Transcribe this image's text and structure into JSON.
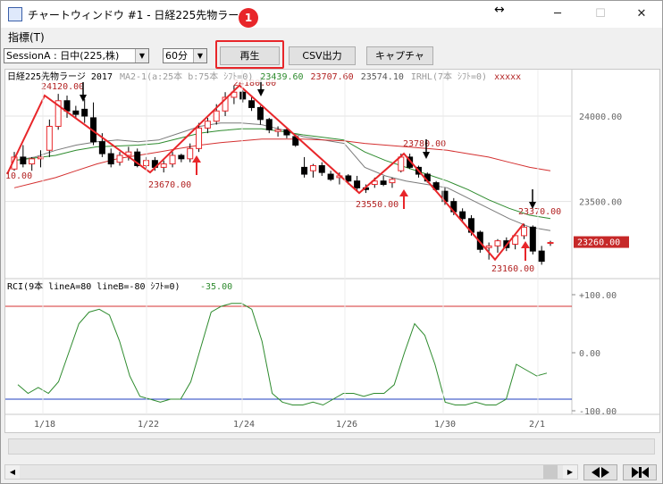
{
  "window": {
    "title": "チャートウィンドウ #1 - 日経225先物ラージ",
    "resize_symbol": "↔",
    "minimize_symbol": "─",
    "maximize_symbol": "☐",
    "close_symbol": "✕"
  },
  "menu": {
    "items": [
      {
        "label": "指標(T)"
      }
    ]
  },
  "toolbar": {
    "session_combo_value": "SessionA : 日中(225,株)",
    "interval_combo_value": "60分",
    "play_label": "再生",
    "csv_label": "CSV出力",
    "capture_label": "キャプチャ",
    "combo_arrow": "▼"
  },
  "annotation": {
    "step_number": "1"
  },
  "chart": {
    "header_title": "日経225先物ラージ 2017",
    "header_ma_text": "MA2-1(a:25本 b:75本 ｼﾌﾄ=0)",
    "header_ma_val1": "23439.60",
    "header_ma_val2": "23707.60",
    "header_ma_val3": "23574.10",
    "header_irhl_text": "IRHL(7本 ｼﾌﾄ=0)",
    "header_irhl_val": "xxxxx",
    "price_axis_labels": [
      "24000.00",
      "23500.00"
    ],
    "current_price_label": "23260.00",
    "zigzag_labels": [
      "24120.00",
      "10.00",
      "23670.00",
      "24180.00",
      "23550.00",
      "23780.00",
      "23370.00",
      "23160.00"
    ],
    "rci_header": "RCI(9本 lineA=80 lineB=-80 ｼﾌﾄ=0)",
    "rci_value": "-35.00",
    "rci_axis_labels": [
      "+100.00",
      "0.00",
      "-100.00"
    ],
    "date_labels": [
      "1/18",
      "1/22",
      "1/24",
      "1/26",
      "1/30",
      "2/1"
    ],
    "colors": {
      "up_candle": "#ffffff",
      "down_candle": "#000000",
      "zigzag": "#e8262a",
      "ma_fast": "#7a7a7a",
      "ma_mid": "#2e8b2e",
      "ma_slow": "#d43030",
      "rci_line": "#2e8b2e",
      "rci_line_a": "#d43030",
      "rci_line_b": "#1f3fbf"
    }
  },
  "chart_data": {
    "type": "candlestick",
    "title": "日経225先物ラージ 2017",
    "x_labels": [
      "1/18",
      "1/22",
      "1/24",
      "1/26",
      "1/30",
      "2/1"
    ],
    "y_axis_ticks": [
      24000,
      23500
    ],
    "ylim": [
      23080,
      24230
    ],
    "zigzag_points": [
      {
        "label": "",
        "value": 23660
      },
      {
        "label": "24120.00",
        "value": 24120
      },
      {
        "label": "23670.00",
        "value": 23670
      },
      {
        "label": "24180.00",
        "value": 24180
      },
      {
        "label": "23550.00",
        "value": 23550
      },
      {
        "label": "23780.00",
        "value": 23780
      },
      {
        "label": "23160.00",
        "value": 23160
      },
      {
        "label": "23370.00",
        "value": 23370
      }
    ],
    "last_price": 23260,
    "rci": {
      "title": "RCI(9本 lineA=80 lineB=-80 ｼﾌﾄ=0)",
      "current": -35,
      "line_a": 80,
      "line_b": -80,
      "ylim": [
        -100,
        100
      ],
      "values": [
        -55,
        -70,
        -60,
        -70,
        -50,
        0,
        50,
        70,
        75,
        65,
        20,
        -40,
        -75,
        -80,
        -85,
        -80,
        -80,
        -50,
        10,
        70,
        80,
        85,
        85,
        75,
        20,
        -70,
        -85,
        -90,
        -90,
        -85,
        -90,
        -80,
        -70,
        -70,
        -75,
        -70,
        -70,
        -55,
        0,
        50,
        30,
        -20,
        -85,
        -90,
        -90,
        -85,
        -90,
        -90,
        -80,
        -20,
        -30,
        -40,
        -35
      ]
    },
    "candles": [
      [
        23690,
        23790,
        23680,
        23760
      ],
      [
        23760,
        23830,
        23700,
        23720
      ],
      [
        23720,
        23760,
        23680,
        23750
      ],
      [
        23750,
        23800,
        23700,
        23760
      ],
      [
        23800,
        23980,
        23760,
        23940
      ],
      [
        23940,
        24130,
        23920,
        24090
      ],
      [
        24090,
        24120,
        23990,
        24030
      ],
      [
        24030,
        24060,
        23990,
        24010
      ],
      [
        24040,
        24100,
        23960,
        24000
      ],
      [
        23990,
        24080,
        23830,
        23850
      ],
      [
        23850,
        23900,
        23760,
        23780
      ],
      [
        23780,
        23810,
        23700,
        23720
      ],
      [
        23730,
        23790,
        23710,
        23770
      ],
      [
        23770,
        23820,
        23740,
        23790
      ],
      [
        23790,
        23810,
        23700,
        23710
      ],
      [
        23710,
        23760,
        23690,
        23740
      ],
      [
        23740,
        23760,
        23680,
        23700
      ],
      [
        23700,
        23740,
        23670,
        23720
      ],
      [
        23720,
        23790,
        23700,
        23770
      ],
      [
        23770,
        23780,
        23730,
        23750
      ],
      [
        23750,
        23840,
        23730,
        23810
      ],
      [
        23810,
        23960,
        23790,
        23930
      ],
      [
        23930,
        23990,
        23900,
        23970
      ],
      [
        23970,
        24070,
        23950,
        24030
      ],
      [
        24030,
        24140,
        24000,
        24110
      ],
      [
        24110,
        24180,
        24070,
        24140
      ],
      [
        24140,
        24150,
        24080,
        24100
      ],
      [
        24090,
        24110,
        24030,
        24050
      ],
      [
        24050,
        24060,
        23950,
        23980
      ],
      [
        23980,
        23990,
        23900,
        23920
      ],
      [
        23910,
        23940,
        23880,
        23920
      ],
      [
        23920,
        23930,
        23870,
        23890
      ],
      [
        23880,
        23890,
        23820,
        23830
      ],
      [
        23700,
        23760,
        23640,
        23660
      ],
      [
        23680,
        23720,
        23640,
        23710
      ],
      [
        23710,
        23730,
        23650,
        23670
      ],
      [
        23660,
        23680,
        23620,
        23630
      ],
      [
        23640,
        23670,
        23600,
        23650
      ],
      [
        23650,
        23660,
        23600,
        23620
      ],
      [
        23620,
        23650,
        23560,
        23580
      ],
      [
        23580,
        23600,
        23550,
        23570
      ],
      [
        23600,
        23640,
        23580,
        23620
      ],
      [
        23620,
        23650,
        23590,
        23600
      ],
      [
        23610,
        23640,
        23580,
        23630
      ],
      [
        23680,
        23780,
        23670,
        23760
      ],
      [
        23760,
        23780,
        23690,
        23700
      ],
      [
        23700,
        23710,
        23640,
        23660
      ],
      [
        23660,
        23670,
        23610,
        23620
      ],
      [
        23610,
        23620,
        23560,
        23570
      ],
      [
        23560,
        23580,
        23480,
        23500
      ],
      [
        23500,
        23520,
        23420,
        23440
      ],
      [
        23440,
        23460,
        23380,
        23400
      ],
      [
        23400,
        23420,
        23300,
        23320
      ],
      [
        23320,
        23330,
        23200,
        23220
      ],
      [
        23230,
        23260,
        23160,
        23240
      ],
      [
        23240,
        23280,
        23200,
        23270
      ],
      [
        23270,
        23290,
        23210,
        23230
      ],
      [
        23250,
        23310,
        23220,
        23300
      ],
      [
        23300,
        23370,
        23280,
        23350
      ],
      [
        23350,
        23360,
        23190,
        23210
      ],
      [
        23210,
        23240,
        23130,
        23150
      ],
      [
        23260,
        23270,
        23240,
        23260
      ]
    ],
    "moving_averages": [
      {
        "name": "MA-a",
        "values": [
          23740,
          23760,
          23800,
          23830,
          23850,
          23860,
          23850,
          23860,
          23900,
          23940,
          23960,
          23960,
          23950,
          23920,
          23880,
          23860,
          23840,
          23700,
          23650,
          23620,
          23600,
          23580,
          23520,
          23460,
          23400,
          23350,
          23330
        ]
      },
      {
        "name": "MA-b",
        "values": [
          23740,
          23755,
          23770,
          23800,
          23820,
          23825,
          23830,
          23840,
          23870,
          23900,
          23915,
          23925,
          23925,
          23910,
          23890,
          23875,
          23860,
          23790,
          23740,
          23700,
          23660,
          23620,
          23570,
          23510,
          23460,
          23420,
          23400
        ]
      },
      {
        "name": "MA-c",
        "values": [
          23580,
          23610,
          23640,
          23680,
          23720,
          23750,
          23770,
          23790,
          23810,
          23830,
          23845,
          23855,
          23865,
          23865,
          23865,
          23860,
          23855,
          23840,
          23830,
          23820,
          23810,
          23800,
          23780,
          23760,
          23730,
          23700,
          23680
        ]
      }
    ]
  }
}
